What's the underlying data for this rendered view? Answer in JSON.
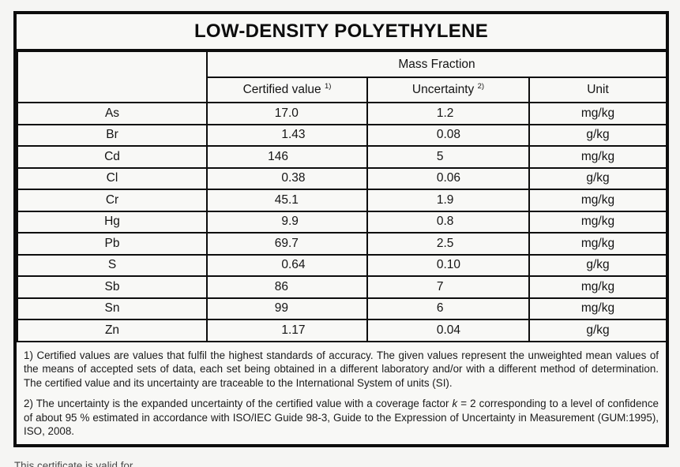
{
  "title": "LOW-DENSITY POLYETHYLENE",
  "table": {
    "group_header": "Mass Fraction",
    "columns": {
      "certified": "Certified value",
      "certified_sup": "1)",
      "uncertainty": "Uncertainty",
      "uncertainty_sup": "2)",
      "unit": "Unit"
    },
    "rows": [
      {
        "element": "As",
        "value": "17.0",
        "uncertainty": "1.2",
        "unit": "mg/kg"
      },
      {
        "element": "Br",
        "value": "1.43",
        "uncertainty": "0.08",
        "unit": "g/kg"
      },
      {
        "element": "Cd",
        "value": "146",
        "uncertainty": "5",
        "unit": "mg/kg"
      },
      {
        "element": "Cl",
        "value": "0.38",
        "uncertainty": "0.06",
        "unit": "g/kg"
      },
      {
        "element": "Cr",
        "value": "45.1",
        "uncertainty": "1.9",
        "unit": "mg/kg"
      },
      {
        "element": "Hg",
        "value": "9.9",
        "uncertainty": "0.8",
        "unit": "mg/kg"
      },
      {
        "element": "Pb",
        "value": "69.7",
        "uncertainty": "2.5",
        "unit": "mg/kg"
      },
      {
        "element": "S",
        "value": "0.64",
        "uncertainty": "0.10",
        "unit": "g/kg"
      },
      {
        "element": "Sb",
        "value": "86",
        "uncertainty": "7",
        "unit": "mg/kg"
      },
      {
        "element": "Sn",
        "value": "99",
        "uncertainty": "6",
        "unit": "mg/kg"
      },
      {
        "element": "Zn",
        "value": "1.17",
        "uncertainty": "0.04",
        "unit": "g/kg"
      }
    ]
  },
  "footnotes": {
    "note1": "1) Certified values are values that fulfil the highest standards of accuracy. The given values represent the unweighted mean values of the means of accepted sets of data, each set being obtained in a different laboratory and/or with a different method of determination. The certified value and its uncertainty are traceable to the International System of units (SI).",
    "note2_prefix": "2) The uncertainty is the expanded uncertainty of the certified value with a coverage factor ",
    "note2_k": "k",
    "note2_suffix": " = 2 corresponding to a level of confidence of about 95 % estimated in accordance with ISO/IEC Guide 98-3, Guide to the Expression of Uncertainty in Measurement (GUM:1995), ISO, 2008."
  },
  "bottom_note": "This certificate is valid for …",
  "colors": {
    "border": "#0d0d0d",
    "page_bg": "#f5f5f3",
    "table_bg": "#f8f8f6",
    "text": "#141414"
  }
}
